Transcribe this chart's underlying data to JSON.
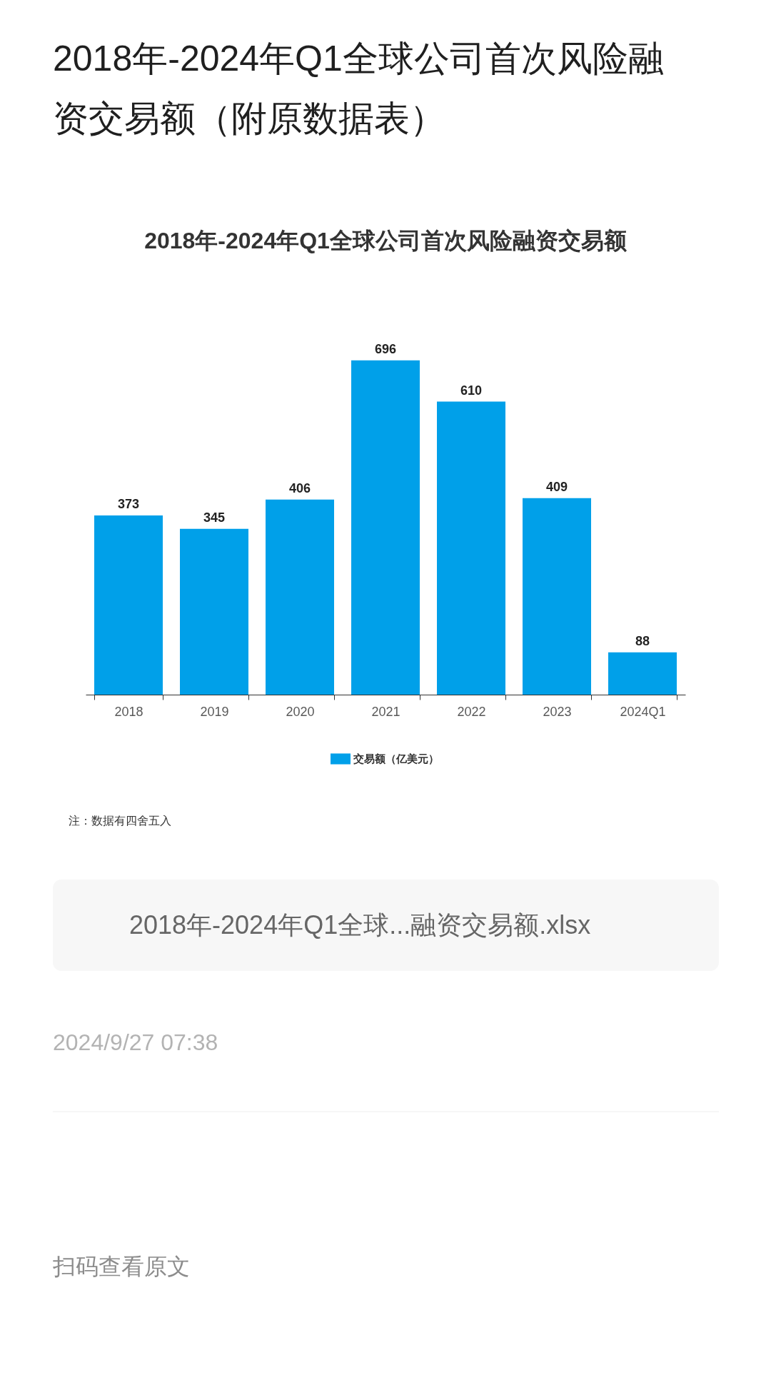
{
  "chart_data": {
    "type": "bar",
    "title": "2018年-2024年Q1全球公司首次风险融资交易额（附原数据表）",
    "subtitle": "2018年-2024年Q1全球公司首次风险融资交易额",
    "categories": [
      "2018",
      "2019",
      "2020",
      "2021",
      "2022",
      "2023",
      "2024Q1"
    ],
    "series": [
      {
        "name": "交易额（亿美元）",
        "color": "#00a0e9",
        "values": [
          373,
          345,
          406,
          696,
          610,
          409,
          88
        ]
      }
    ],
    "data_labels": true,
    "legend": "bottom",
    "tick_labels": "x",
    "annotations": [
      "注：数据有四舍五入",
      "2018年-2024年Q1全球...融资交易额.xlsx",
      "2024/9/27 07:38",
      "扫码查看原文"
    ]
  }
}
